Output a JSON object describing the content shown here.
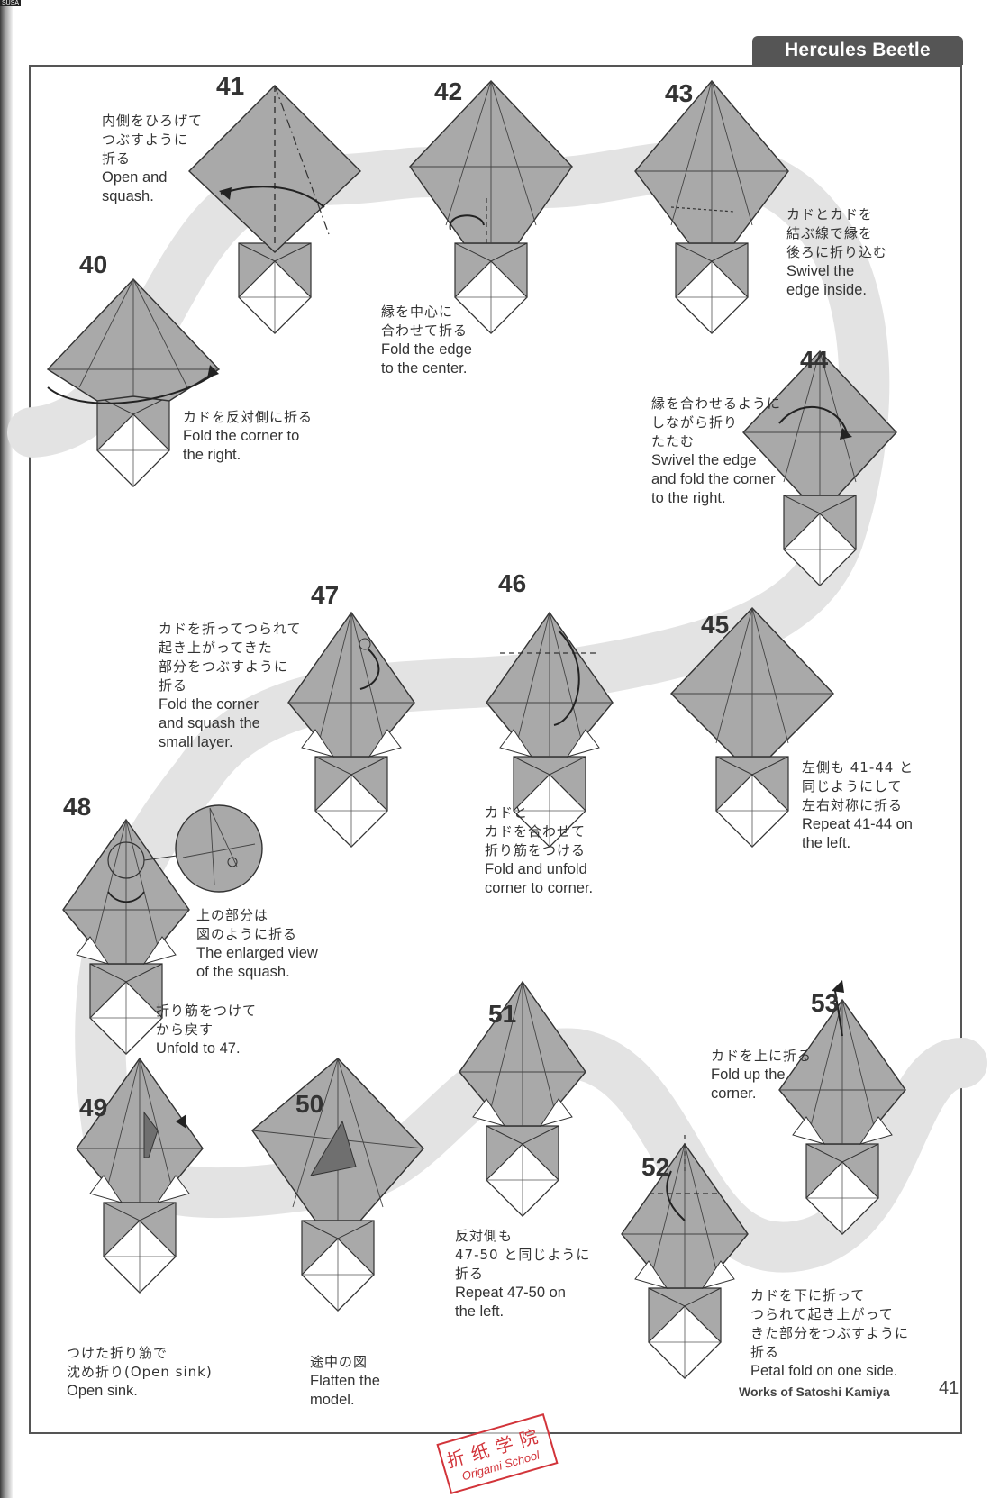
{
  "header": {
    "title": "Hercules Beetle",
    "corner_mark": "SUSA"
  },
  "steps": [
    {
      "num": "41",
      "ja": [
        "内側をひろげて",
        "つぶすように",
        "折る"
      ],
      "en": [
        "Open and",
        "squash."
      ]
    },
    {
      "num": "42",
      "ja": [
        "縁を中心に",
        "合わせて折る"
      ],
      "en": [
        "Fold the edge",
        "to the center."
      ]
    },
    {
      "num": "43",
      "ja": [
        "カドとカドを",
        "結ぶ線で縁を",
        "後ろに折り込む"
      ],
      "en": [
        "Swivel the",
        "edge inside."
      ]
    },
    {
      "num": "40",
      "ja": [
        "カドを反対側に折る"
      ],
      "en": [
        "Fold the corner to",
        "the right."
      ]
    },
    {
      "num": "44",
      "ja": [
        "縁を合わせるように",
        "しながら折り",
        "たたむ"
      ],
      "en": [
        "Swivel the edge",
        "and fold the corner",
        "to the right."
      ]
    },
    {
      "num": "47",
      "ja": [
        "カドを折ってつられて",
        "起き上がってきた",
        "部分をつぶすように",
        "折る"
      ],
      "en": [
        "Fold the corner",
        "and squash the",
        "small layer."
      ]
    },
    {
      "num": "46",
      "ja": [
        "カドと",
        "カドを合わせて",
        "折り筋をつける"
      ],
      "en": [
        "Fold and unfold",
        "corner to corner."
      ]
    },
    {
      "num": "45",
      "ja": [
        "左側も 41-44 と",
        "同じようにして",
        "左右対称に折る"
      ],
      "en": [
        "Repeat 41-44 on",
        "the left."
      ]
    },
    {
      "num": "48",
      "ja": [
        "上の部分は",
        "図のように折る"
      ],
      "en": [
        "The enlarged view",
        "of the squash."
      ],
      "ja2": [
        "折り筋をつけて",
        "から戻す"
      ],
      "en2": [
        "Unfold to 47."
      ]
    },
    {
      "num": "51",
      "ja": [
        "反対側も",
        "47-50 と同じように",
        "折る"
      ],
      "en": [
        "Repeat 47-50  on",
        "the left."
      ]
    },
    {
      "num": "53",
      "ja": [
        "カドを上に折る"
      ],
      "en": [
        "Fold up the",
        "corner."
      ]
    },
    {
      "num": "49",
      "ja": [
        "つけた折り筋で",
        "沈め折り(Open sink)"
      ],
      "en": [
        "Open sink."
      ]
    },
    {
      "num": "50",
      "ja": [
        "途中の図"
      ],
      "en": [
        "Flatten the",
        "model."
      ]
    },
    {
      "num": "52",
      "ja": [
        "カドを下に折って",
        "つられて起き上がって",
        "きた部分をつぶすように",
        "折る"
      ],
      "en": [
        "Petal fold on one side."
      ]
    }
  ],
  "footer": {
    "credit": "Works of Satoshi Kamiya",
    "page": "41"
  },
  "stamp": {
    "line1": "折纸学院",
    "line2": "Origami School"
  },
  "colors": {
    "paper_colored": "#a9a9a9",
    "paper_white": "#ffffff",
    "path": "#e3e3e3",
    "header": "#555555",
    "stamp": "#d2343a"
  }
}
